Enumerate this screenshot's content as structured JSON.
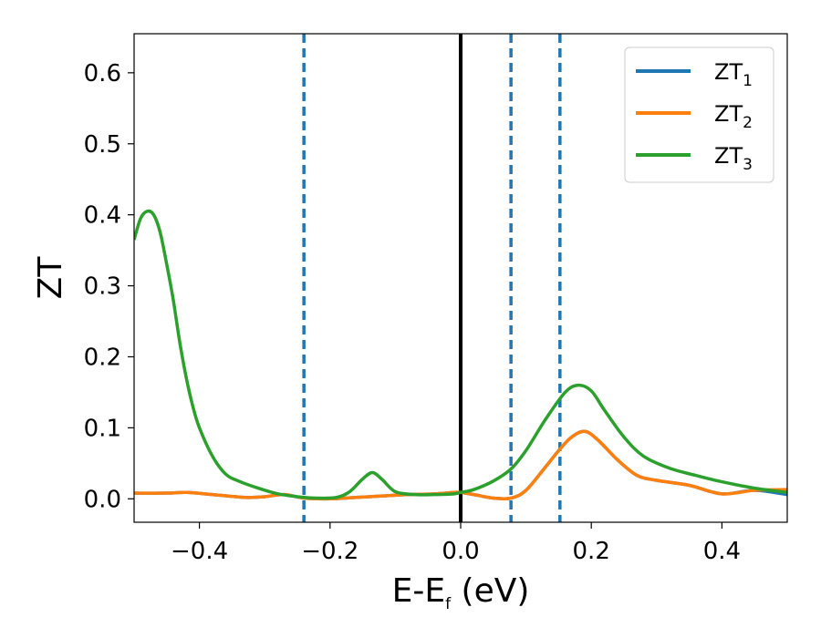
{
  "chart_data": {
    "type": "line",
    "xlabel_main": "E-E",
    "xlabel_sub": "f",
    "xlabel_unit": " (eV)",
    "ylabel": "ZT",
    "xlim": [
      -0.5,
      0.5
    ],
    "ylim": [
      -0.033,
      0.655
    ],
    "x_ticks": [
      {
        "value": -0.4,
        "label": "−0.4"
      },
      {
        "value": -0.2,
        "label": "−0.2"
      },
      {
        "value": 0.0,
        "label": "0.0"
      },
      {
        "value": 0.2,
        "label": "0.2"
      },
      {
        "value": 0.4,
        "label": "0.4"
      }
    ],
    "y_ticks": [
      {
        "value": 0.0,
        "label": "0.0"
      },
      {
        "value": 0.1,
        "label": "0.1"
      },
      {
        "value": 0.2,
        "label": "0.2"
      },
      {
        "value": 0.3,
        "label": "0.3"
      },
      {
        "value": 0.4,
        "label": "0.4"
      },
      {
        "value": 0.5,
        "label": "0.5"
      },
      {
        "value": 0.6,
        "label": "0.6"
      }
    ],
    "vlines": [
      {
        "x": -0.24,
        "style": "dashed",
        "color": "#1f77b4"
      },
      {
        "x": 0.0,
        "style": "solid",
        "color": "#000000"
      },
      {
        "x": 0.077,
        "style": "dashed",
        "color": "#1f77b4"
      },
      {
        "x": 0.152,
        "style": "dashed",
        "color": "#1f77b4"
      }
    ],
    "grid": false,
    "legend_position": "top-right",
    "series": [
      {
        "name_main": "ZT",
        "name_sub": "1",
        "color": "#1f77b4",
        "x": [
          -0.5,
          -0.45,
          -0.42,
          -0.38,
          -0.33,
          -0.3,
          -0.27,
          -0.24,
          -0.2,
          -0.16,
          -0.12,
          -0.08,
          -0.04,
          -0.01,
          0.0,
          0.02,
          0.05,
          0.077,
          0.1,
          0.13,
          0.152,
          0.17,
          0.19,
          0.21,
          0.24,
          0.27,
          0.3,
          0.35,
          0.4,
          0.45,
          0.5
        ],
        "y": [
          0.008,
          0.008,
          0.009,
          0.006,
          0.002,
          0.003,
          0.006,
          0.001,
          0.0,
          0.002,
          0.004,
          0.006,
          0.007,
          0.009,
          0.009,
          0.006,
          0.001,
          0.001,
          0.012,
          0.045,
          0.07,
          0.087,
          0.095,
          0.083,
          0.055,
          0.033,
          0.026,
          0.019,
          0.007,
          0.012,
          0.006
        ]
      },
      {
        "name_main": "ZT",
        "name_sub": "2",
        "color": "#ff7f0e",
        "x": [
          -0.5,
          -0.45,
          -0.42,
          -0.38,
          -0.33,
          -0.3,
          -0.27,
          -0.24,
          -0.2,
          -0.16,
          -0.12,
          -0.08,
          -0.04,
          -0.01,
          0.0,
          0.02,
          0.05,
          0.077,
          0.1,
          0.13,
          0.152,
          0.17,
          0.19,
          0.21,
          0.24,
          0.27,
          0.3,
          0.35,
          0.4,
          0.45,
          0.5
        ],
        "y": [
          0.008,
          0.008,
          0.009,
          0.006,
          0.002,
          0.003,
          0.006,
          0.001,
          0.0,
          0.002,
          0.004,
          0.006,
          0.007,
          0.009,
          0.009,
          0.006,
          0.001,
          0.001,
          0.012,
          0.045,
          0.07,
          0.087,
          0.095,
          0.083,
          0.055,
          0.033,
          0.026,
          0.019,
          0.007,
          0.012,
          0.013
        ]
      },
      {
        "name_main": "ZT",
        "name_sub": "3",
        "color": "#2ca02c",
        "x": [
          -0.5,
          -0.49,
          -0.48,
          -0.47,
          -0.46,
          -0.45,
          -0.44,
          -0.43,
          -0.42,
          -0.41,
          -0.4,
          -0.38,
          -0.36,
          -0.34,
          -0.31,
          -0.28,
          -0.25,
          -0.22,
          -0.19,
          -0.17,
          -0.15,
          -0.135,
          -0.12,
          -0.1,
          -0.07,
          -0.04,
          -0.01,
          0.0,
          0.02,
          0.05,
          0.077,
          0.1,
          0.13,
          0.16,
          0.18,
          0.2,
          0.22,
          0.25,
          0.28,
          0.32,
          0.36,
          0.4,
          0.45,
          0.5
        ],
        "y": [
          0.365,
          0.395,
          0.405,
          0.4,
          0.375,
          0.33,
          0.28,
          0.22,
          0.17,
          0.13,
          0.1,
          0.06,
          0.035,
          0.025,
          0.015,
          0.007,
          0.003,
          0.001,
          0.002,
          0.01,
          0.028,
          0.037,
          0.027,
          0.01,
          0.006,
          0.006,
          0.007,
          0.009,
          0.013,
          0.025,
          0.042,
          0.068,
          0.112,
          0.15,
          0.16,
          0.152,
          0.125,
          0.087,
          0.06,
          0.043,
          0.033,
          0.024,
          0.015,
          0.009
        ]
      }
    ]
  }
}
